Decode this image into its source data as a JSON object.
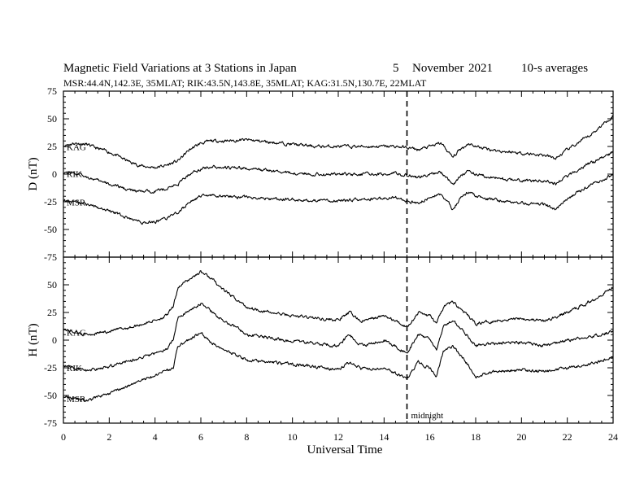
{
  "header": {
    "title_main": "Magnetic Field Variations at 3 Stations in Japan",
    "title_day": "5",
    "title_month": "November",
    "title_year": "2021",
    "title_avg": "10-s averages",
    "subtitle": "MSR:44.4N,142.3E, 35MLAT;  RIK:43.5N,143.8E, 35MLAT;  KAG:31.5N,130.7E, 22MLAT"
  },
  "chart_data": {
    "type": "line",
    "xlabel": "Universal Time",
    "x_ticks": [
      0,
      2,
      4,
      6,
      8,
      10,
      12,
      14,
      16,
      18,
      20,
      22,
      24
    ],
    "xlim": [
      0,
      24
    ],
    "annotation": {
      "x": 15,
      "label": "midnight"
    },
    "panels": [
      {
        "id": "D",
        "ylabel": "D (nT)",
        "ylim": [
          -75,
          75
        ],
        "y_ticks": [
          -75,
          -50,
          -25,
          0,
          25,
          50,
          75
        ],
        "series": [
          {
            "name": "KAG",
            "x": [
              0,
              0.5,
              1,
              1.5,
              2,
              2.5,
              3,
              3.5,
              4,
              4.5,
              5,
              5.5,
              6,
              6.5,
              7,
              8,
              9,
              10,
              11,
              12,
              13,
              14,
              14.5,
              15,
              15.5,
              16,
              16.5,
              16.8,
              17,
              17.3,
              17.7,
              18,
              19,
              20,
              21,
              21.5,
              22,
              23,
              24
            ],
            "y": [
              26,
              28,
              27,
              23,
              20,
              15,
              10,
              7,
              6,
              8,
              12,
              22,
              28,
              30,
              30,
              31,
              29,
              27,
              25,
              25,
              25,
              25,
              25,
              24,
              22,
              25,
              28,
              20,
              15,
              22,
              28,
              25,
              21,
              19,
              17,
              14,
              22,
              35,
              53
            ]
          },
          {
            "name": "RIK",
            "x": [
              0,
              0.5,
              1,
              1.5,
              2,
              2.5,
              3,
              3.5,
              4,
              4.5,
              5,
              5.5,
              6,
              6.5,
              7,
              8,
              9,
              10,
              11,
              12,
              13,
              14,
              14.5,
              15,
              15.5,
              16,
              16.5,
              16.8,
              17,
              17.3,
              17.7,
              18,
              19,
              20,
              21,
              21.5,
              22,
              23,
              24
            ],
            "y": [
              2,
              1,
              -2,
              -6,
              -9,
              -12,
              -15,
              -16,
              -15,
              -13,
              -9,
              0,
              5,
              7,
              6,
              5,
              3,
              1,
              0,
              0,
              0,
              0,
              1,
              -1,
              -3,
              0,
              2,
              -5,
              -10,
              -2,
              3,
              0,
              -4,
              -6,
              -6,
              -9,
              -2,
              10,
              20
            ]
          },
          {
            "name": "MSR",
            "x": [
              0,
              0.5,
              1,
              1.5,
              2,
              2.5,
              3,
              3.5,
              4,
              4.5,
              5,
              5.5,
              6,
              6.5,
              7,
              8,
              9,
              10,
              11,
              12,
              13,
              14,
              14.5,
              15,
              15.5,
              16,
              16.5,
              16.8,
              17,
              17.3,
              17.7,
              18,
              19,
              20,
              21,
              21.5,
              22,
              23,
              24
            ],
            "y": [
              -24,
              -25,
              -27,
              -30,
              -33,
              -37,
              -41,
              -44,
              -43,
              -40,
              -35,
              -25,
              -20,
              -19,
              -20,
              -21,
              -22,
              -23,
              -24,
              -24,
              -23,
              -22,
              -21,
              -24,
              -26,
              -21,
              -18,
              -25,
              -33,
              -22,
              -16,
              -20,
              -24,
              -26,
              -27,
              -32,
              -22,
              -10,
              0
            ]
          }
        ]
      },
      {
        "id": "H",
        "ylabel": "H (nT)",
        "ylim": [
          -75,
          75
        ],
        "y_ticks": [
          -75,
          -50,
          -25,
          0,
          25,
          50,
          75
        ],
        "series": [
          {
            "name": "KAG",
            "x": [
              0,
              1,
              2,
              3,
              4,
              4.5,
              4.8,
              5,
              5.5,
              6,
              6.5,
              7,
              8,
              9,
              10,
              11,
              12,
              12.5,
              13,
              14,
              15,
              15.5,
              16,
              16.3,
              16.6,
              17,
              17.5,
              18,
              19,
              20,
              21,
              22,
              23,
              24
            ],
            "y": [
              10,
              5,
              8,
              12,
              18,
              22,
              30,
              48,
              55,
              62,
              55,
              45,
              30,
              25,
              22,
              20,
              18,
              25,
              17,
              22,
              12,
              25,
              22,
              15,
              30,
              35,
              25,
              15,
              18,
              20,
              17,
              25,
              35,
              48
            ]
          },
          {
            "name": "RIK",
            "x": [
              0,
              1,
              2,
              3,
              4,
              4.5,
              4.8,
              5,
              5.5,
              6,
              6.5,
              7,
              8,
              9,
              10,
              11,
              12,
              12.5,
              13,
              14,
              15,
              15.5,
              16,
              16.3,
              16.6,
              17,
              17.5,
              18,
              19,
              20,
              21,
              22,
              23,
              24
            ],
            "y": [
              -22,
              -28,
              -24,
              -18,
              -12,
              -8,
              0,
              20,
              27,
              33,
              25,
              18,
              5,
              2,
              -1,
              -3,
              -5,
              5,
              -5,
              0,
              -12,
              5,
              0,
              -8,
              12,
              18,
              8,
              -5,
              -3,
              -2,
              -5,
              0,
              3,
              8
            ]
          },
          {
            "name": "MSR",
            "x": [
              0,
              1,
              2,
              3,
              4,
              4.5,
              4.8,
              5,
              5.5,
              6,
              6.5,
              7,
              8,
              9,
              10,
              11,
              12,
              12.5,
              13,
              14,
              15,
              15.5,
              16,
              16.3,
              16.6,
              17,
              17.5,
              18,
              19,
              20,
              21,
              22,
              23,
              24
            ],
            "y": [
              -50,
              -55,
              -48,
              -40,
              -32,
              -28,
              -26,
              -5,
              0,
              7,
              -3,
              -8,
              -18,
              -20,
              -22,
              -24,
              -27,
              -20,
              -26,
              -25,
              -35,
              -20,
              -25,
              -32,
              -10,
              -5,
              -18,
              -33,
              -28,
              -27,
              -28,
              -25,
              -22,
              -15
            ]
          }
        ]
      }
    ]
  }
}
